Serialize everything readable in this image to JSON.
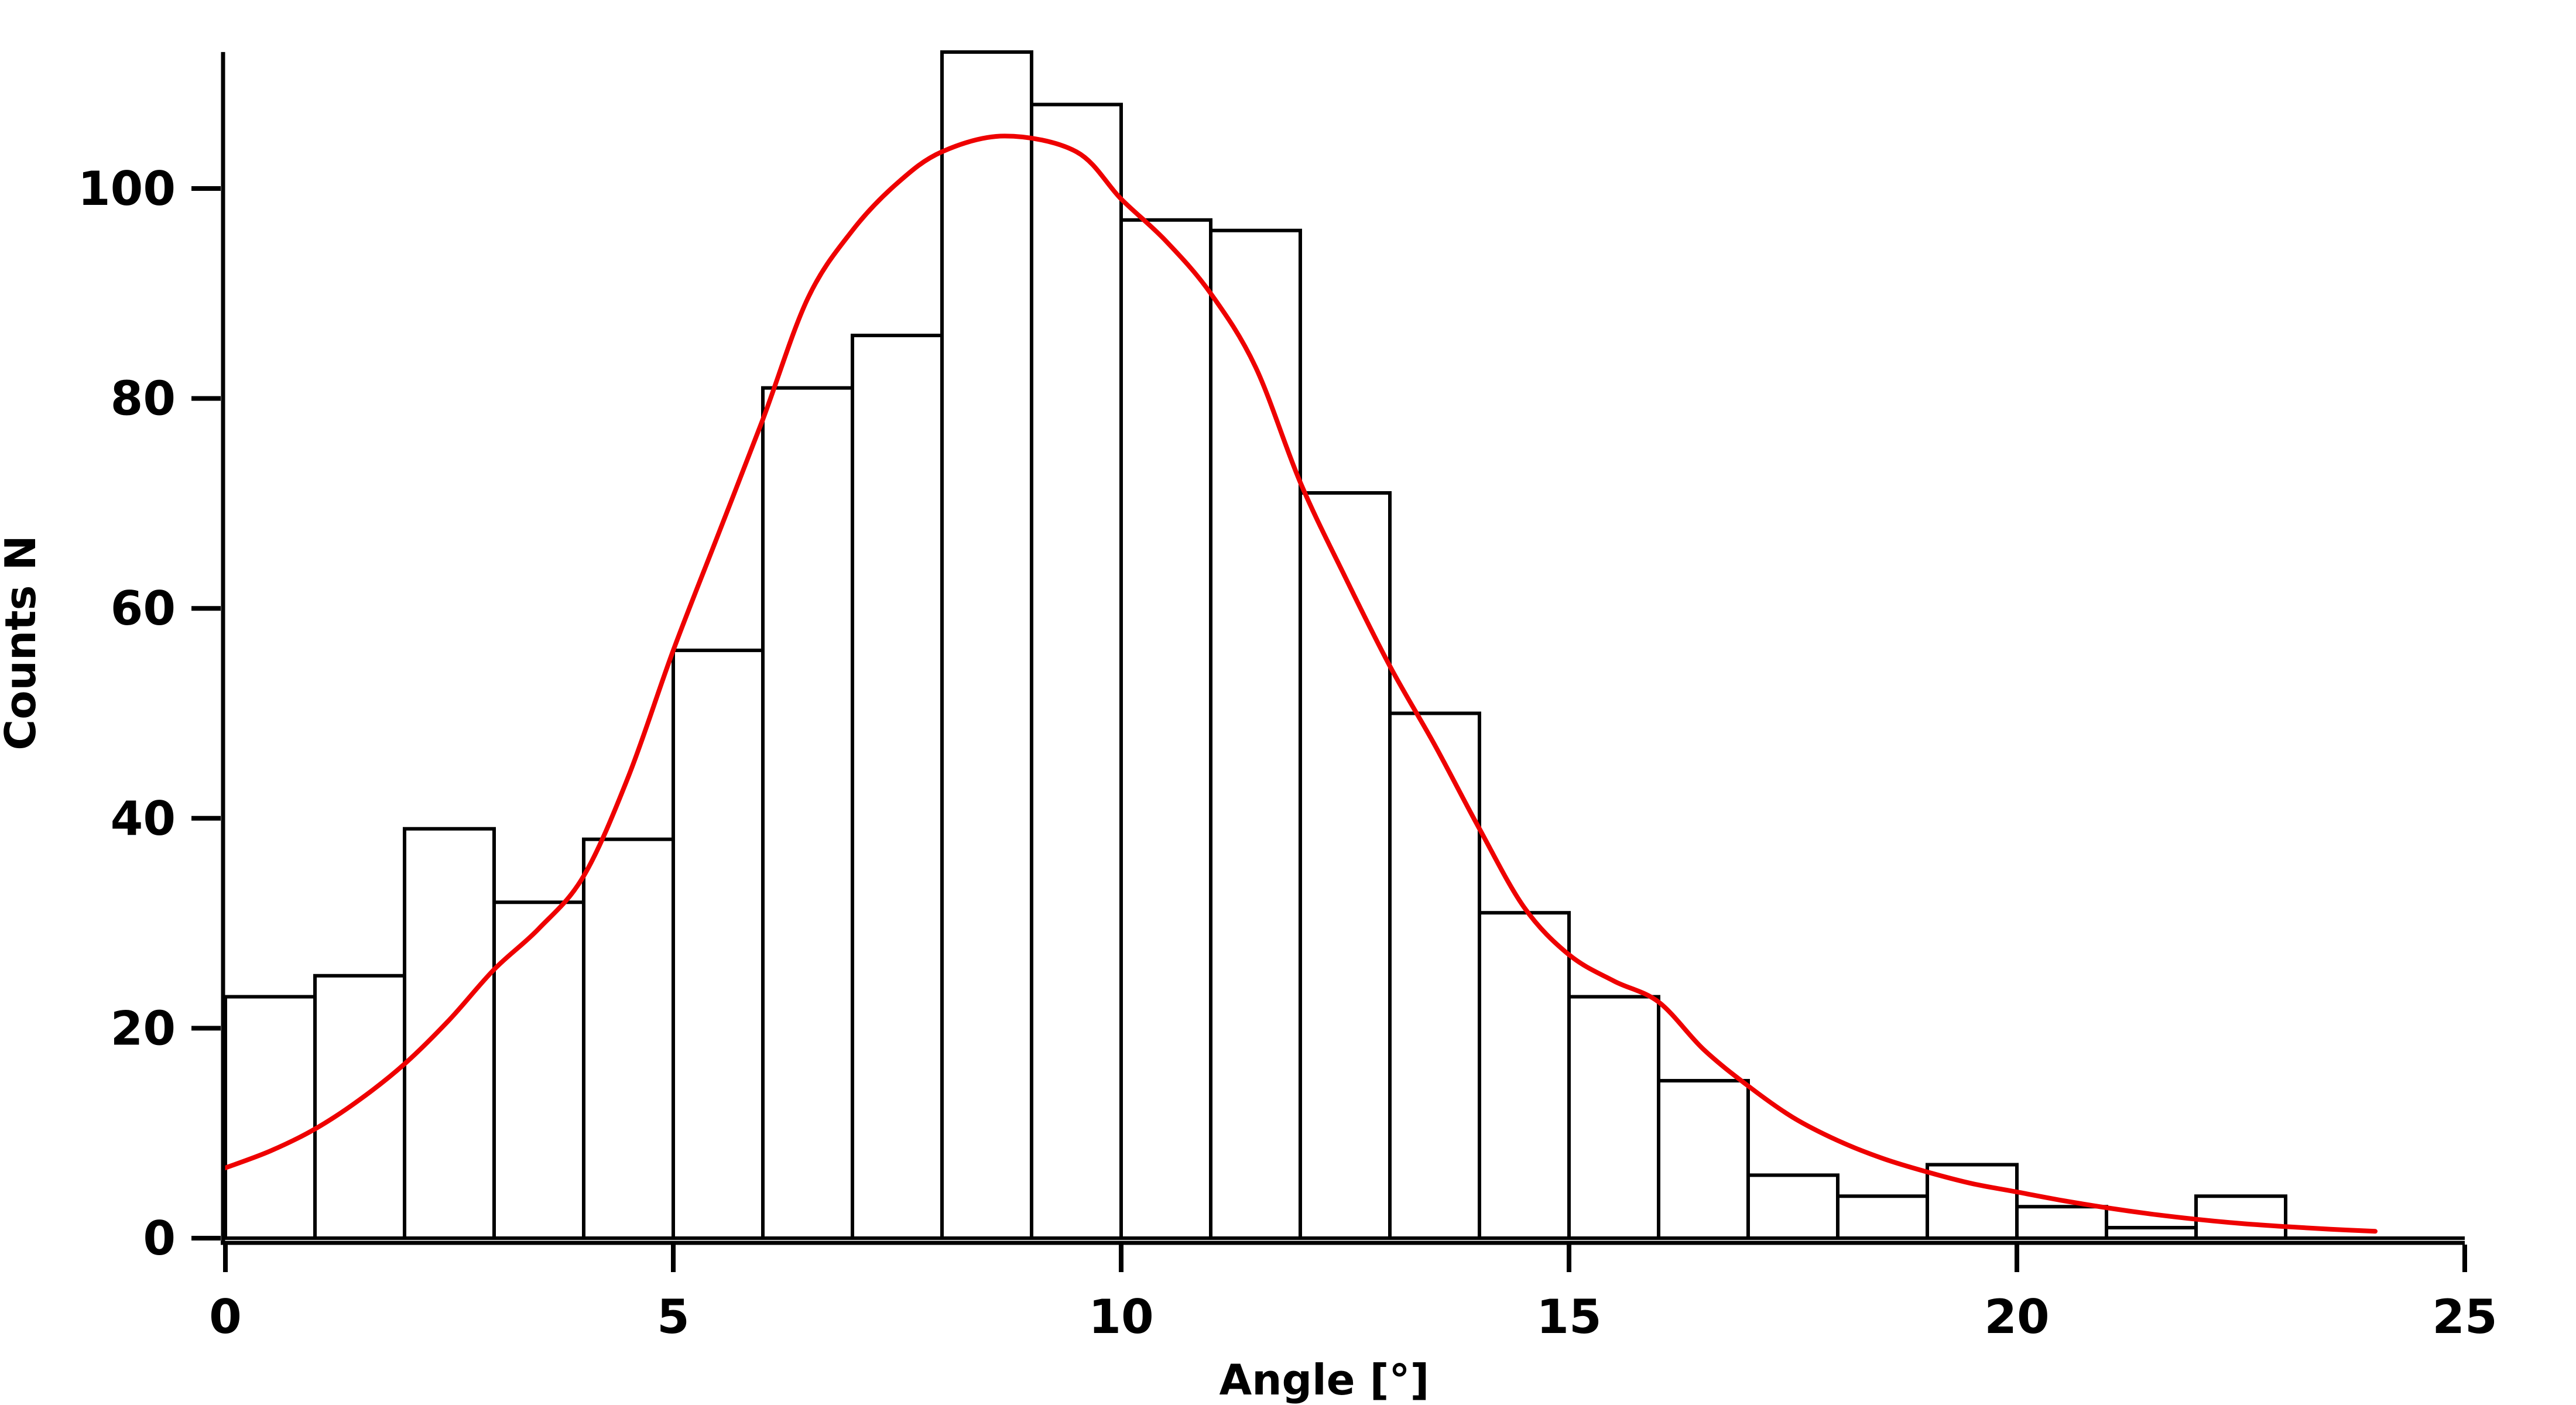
{
  "figure": {
    "background": "#ffffff",
    "axis_color": "#000000"
  },
  "chart_data": {
    "type": "bar",
    "subtype": "histogram_with_fit_curve",
    "title": "",
    "xlabel": "Angle [°]",
    "ylabel": "Counts N",
    "bin_start": 0,
    "bin_width": 1,
    "categories": [
      "0-1",
      "1-2",
      "2-3",
      "3-4",
      "4-5",
      "5-6",
      "6-7",
      "7-8",
      "8-9",
      "9-10",
      "10-11",
      "11-12",
      "12-13",
      "13-14",
      "14-15",
      "15-16",
      "16-17",
      "17-18",
      "18-19",
      "19-20",
      "20-21",
      "21-22",
      "22-23",
      "23-24",
      "24-25"
    ],
    "values": [
      23,
      25,
      39,
      32,
      38,
      56,
      81,
      86,
      113,
      108,
      97,
      96,
      71,
      50,
      31,
      23,
      15,
      6,
      4,
      7,
      3,
      1,
      4,
      0,
      0
    ],
    "xlim": [
      0,
      25
    ],
    "ylim": [
      0,
      113
    ],
    "xticks": [
      0,
      5,
      10,
      15,
      20,
      25
    ],
    "yticks": [
      0,
      20,
      40,
      60,
      80,
      100
    ],
    "xtick_labels": [
      "0",
      "5",
      "10",
      "15",
      "20",
      "25"
    ],
    "ytick_labels": [
      "0",
      "20",
      "40",
      "60",
      "80",
      "100"
    ],
    "grid": false,
    "legend": null,
    "bar_fill": "#ffffff",
    "bar_stroke": "#000000",
    "fit_curve": {
      "color": "#ee0000",
      "peak_value": 105,
      "peak_x": 8.7,
      "points": [
        [
          0,
          6.7
        ],
        [
          0.5,
          8.3
        ],
        [
          1,
          10.4
        ],
        [
          1.5,
          13.2
        ],
        [
          2,
          16.6
        ],
        [
          2.5,
          20.8
        ],
        [
          3,
          25.6
        ],
        [
          3.5,
          29.5
        ],
        [
          4,
          34.5
        ],
        [
          4.5,
          44
        ],
        [
          5,
          56
        ],
        [
          5.5,
          67
        ],
        [
          6,
          78
        ],
        [
          6.5,
          89.5
        ],
        [
          7,
          96
        ],
        [
          7.5,
          100.5
        ],
        [
          8,
          103.5
        ],
        [
          8.7,
          105
        ],
        [
          9.5,
          103.5
        ],
        [
          10,
          99
        ],
        [
          10.5,
          95
        ],
        [
          11,
          90
        ],
        [
          11.5,
          83
        ],
        [
          12,
          72
        ],
        [
          12.5,
          63
        ],
        [
          13,
          54.5
        ],
        [
          13.5,
          47
        ],
        [
          14,
          39
        ],
        [
          14.5,
          31.5
        ],
        [
          15,
          27
        ],
        [
          15.5,
          24.5
        ],
        [
          16,
          22.5
        ],
        [
          16.5,
          18
        ],
        [
          17,
          14.5
        ],
        [
          17.5,
          11.5
        ],
        [
          18,
          9.3
        ],
        [
          18.5,
          7.6
        ],
        [
          19,
          6.3
        ],
        [
          19.5,
          5.2
        ],
        [
          20,
          4.4
        ],
        [
          20.5,
          3.6
        ],
        [
          21,
          2.9
        ],
        [
          21.5,
          2.3
        ],
        [
          22,
          1.8
        ],
        [
          22.5,
          1.4
        ],
        [
          23,
          1.1
        ],
        [
          23.5,
          0.85
        ],
        [
          24,
          0.65
        ]
      ]
    }
  }
}
